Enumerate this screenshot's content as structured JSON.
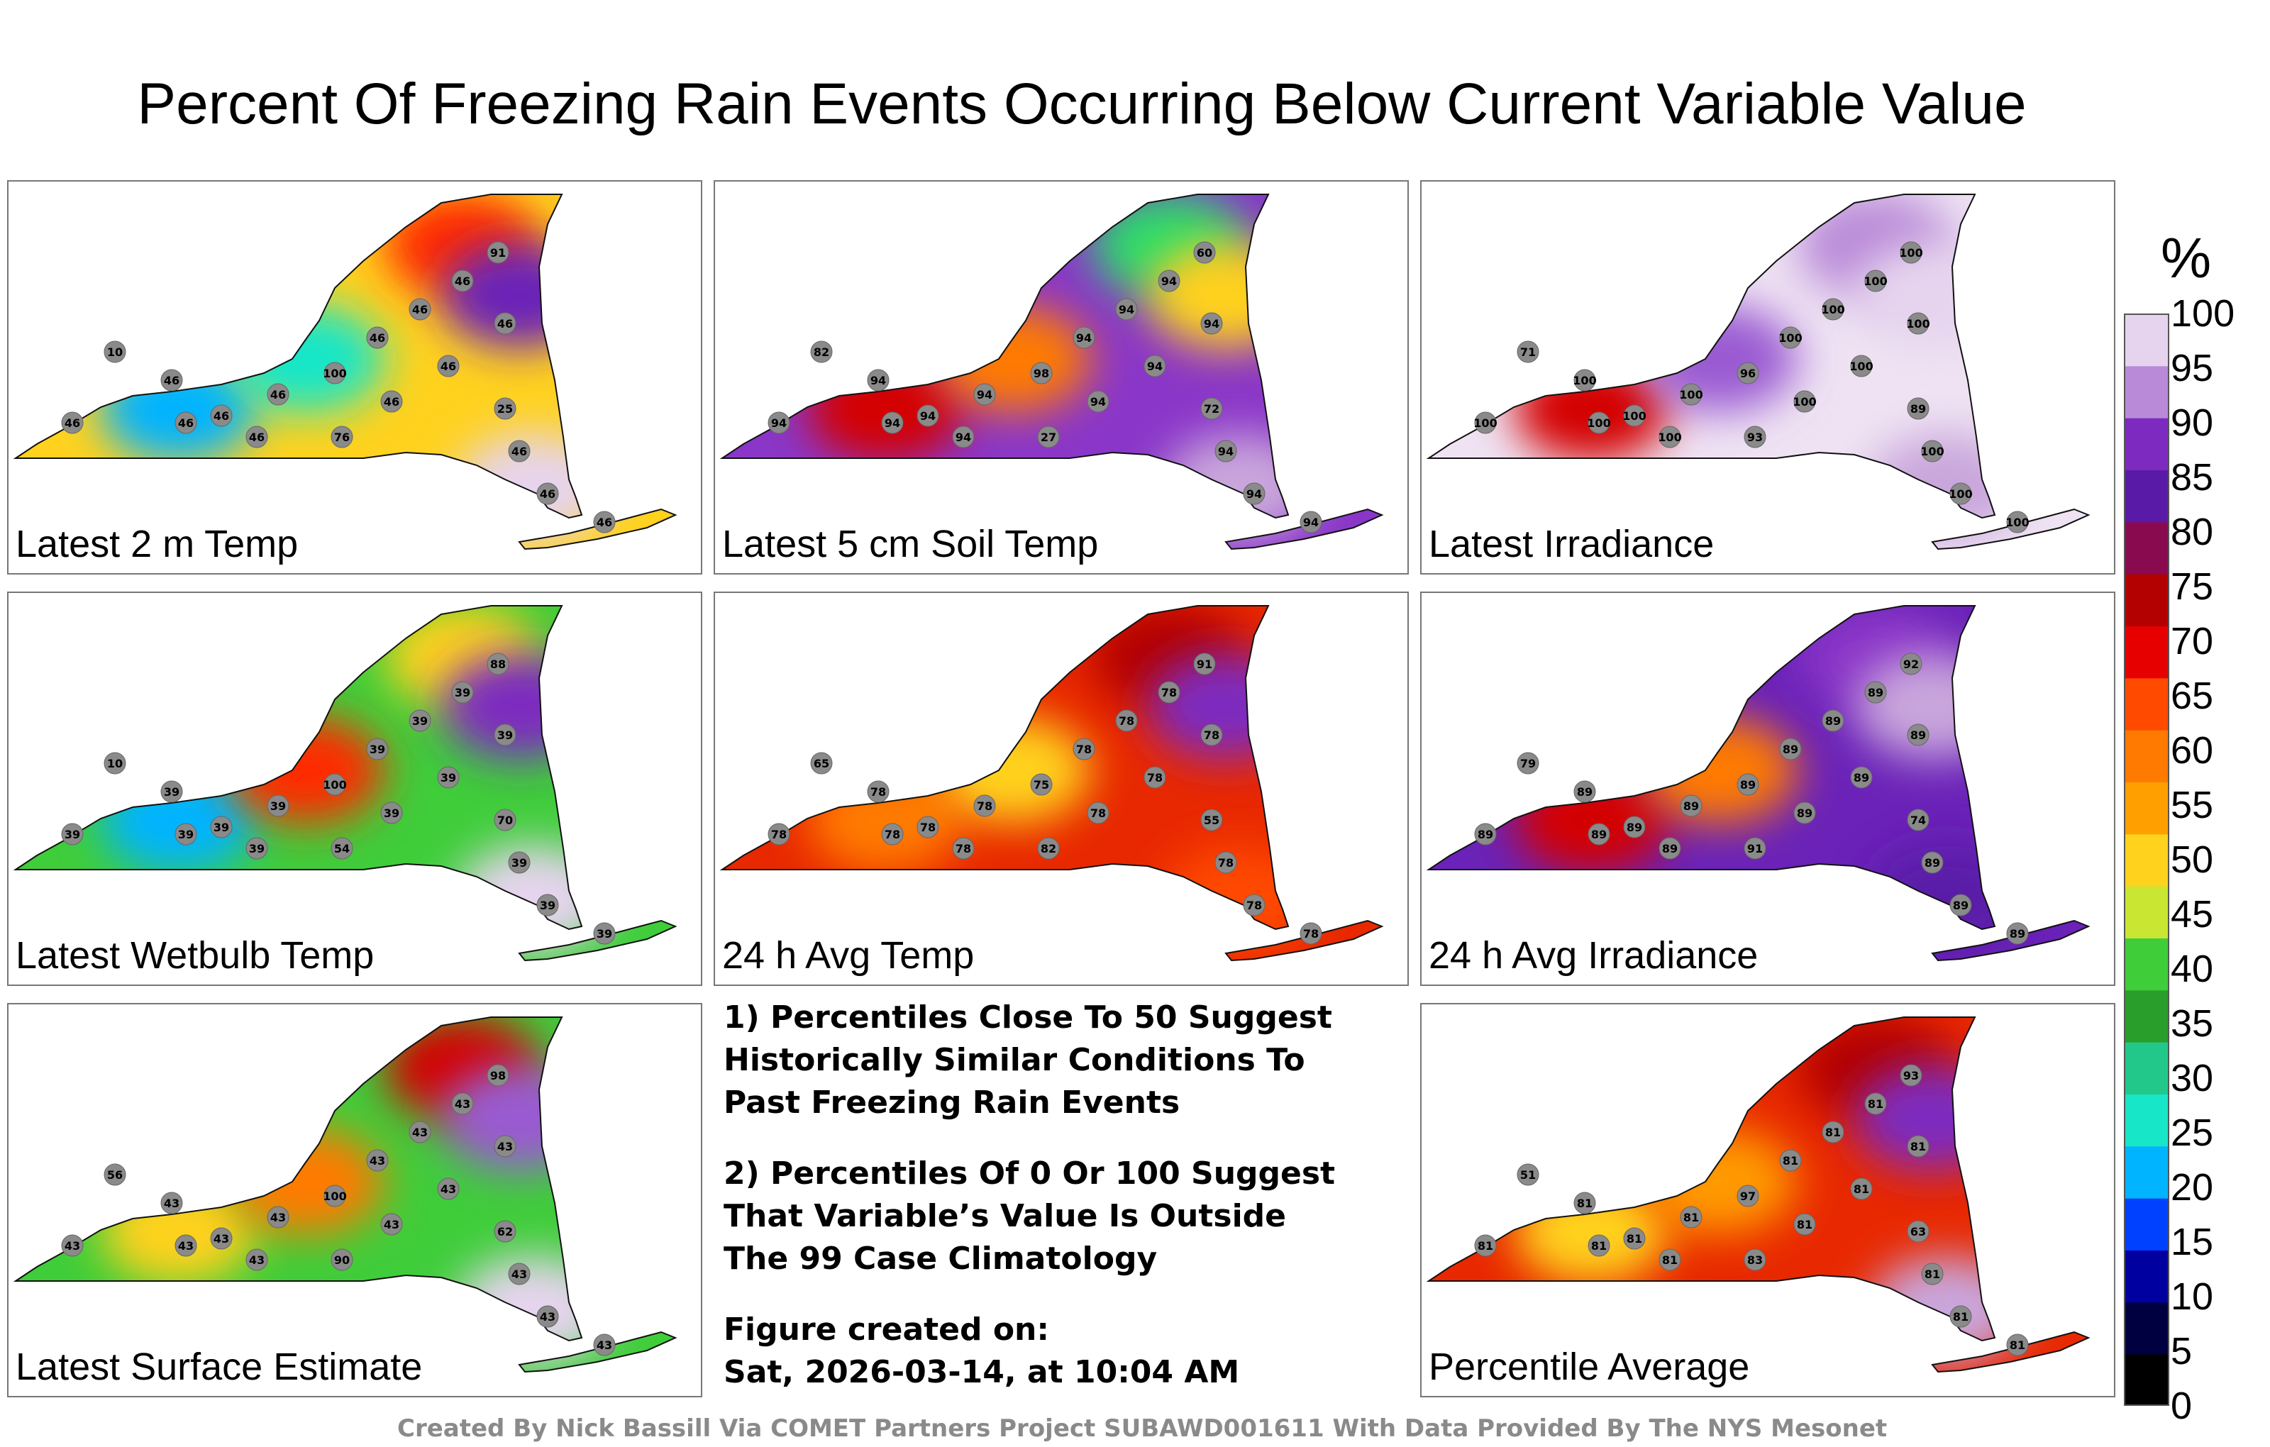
{
  "title": "Percent Of Freezing Rain Events Occurring Below Current Variable Value",
  "panels": [
    {
      "id": "t2m",
      "label": "Latest 2 m Temp",
      "fill": "#ffd21e",
      "station_value": "46",
      "blobs": [
        {
          "c": "#00b4ff",
          "v": "10"
        },
        {
          "c": "#18e6c8",
          "v": "25"
        },
        {
          "c": "#ff2a00",
          "v": "76"
        },
        {
          "c": "#6a22b8",
          "v": "91"
        },
        {
          "c": "#e6d4ee",
          "v": "100"
        }
      ]
    },
    {
      "id": "soil5",
      "label": "Latest 5 cm Soil Temp",
      "fill": "#8a36c8",
      "station_value": "94",
      "blobs": [
        {
          "c": "#d40000",
          "v": "82"
        },
        {
          "c": "#ff7a00",
          "v": "72"
        },
        {
          "c": "#2adc6a",
          "v": "27"
        },
        {
          "c": "#ffd21e",
          "v": "60"
        },
        {
          "c": "#c9a6dc",
          "v": "98"
        }
      ]
    },
    {
      "id": "irr",
      "label": "Latest Irradiance",
      "fill": "#efe3f3",
      "station_value": "100",
      "blobs": [
        {
          "c": "#d40000",
          "v": "71"
        },
        {
          "c": "#9a5ad2",
          "v": "89"
        },
        {
          "c": "#b98ad8",
          "v": "93"
        },
        {
          "c": "#e6d4ee",
          "v": "100"
        },
        {
          "c": "#c9a6dc",
          "v": "96"
        }
      ]
    },
    {
      "id": "wetbulb",
      "label": "Latest Wetbulb Temp",
      "fill": "#3fcd3a",
      "station_value": "39",
      "blobs": [
        {
          "c": "#00b4ff",
          "v": "10"
        },
        {
          "c": "#ff2a00",
          "v": "70"
        },
        {
          "c": "#ffd21e",
          "v": "54"
        },
        {
          "c": "#7d2ac0",
          "v": "88"
        },
        {
          "c": "#e6d4ee",
          "v": "100"
        }
      ]
    },
    {
      "id": "avgtemp",
      "label": "24 h Avg Temp",
      "fill": "#e82800",
      "station_value": "78",
      "blobs": [
        {
          "c": "#ff7a00",
          "v": "65"
        },
        {
          "c": "#ffd21e",
          "v": "55"
        },
        {
          "c": "#b30000",
          "v": "82"
        },
        {
          "c": "#7d2ac0",
          "v": "91"
        },
        {
          "c": "#ff4a00",
          "v": "75"
        }
      ]
    },
    {
      "id": "avgirr",
      "label": "24 h Avg Irradiance",
      "fill": "#6a22b8",
      "station_value": "89",
      "blobs": [
        {
          "c": "#d40000",
          "v": "79"
        },
        {
          "c": "#ff7a00",
          "v": "74"
        },
        {
          "c": "#8a36c8",
          "v": "91"
        },
        {
          "c": "#c9a6dc",
          "v": "92"
        },
        {
          "c": "#5a1aa8",
          "v": "89"
        }
      ]
    },
    {
      "id": "surf",
      "label": "Latest Surface Estimate",
      "fill": "#3fcd3a",
      "station_value": "43",
      "blobs": [
        {
          "c": "#ffd21e",
          "v": "56"
        },
        {
          "c": "#ff7a00",
          "v": "62"
        },
        {
          "c": "#d40000",
          "v": "90"
        },
        {
          "c": "#9a5ad2",
          "v": "98"
        },
        {
          "c": "#e6d4ee",
          "v": "100"
        }
      ]
    },
    {
      "id": "avg",
      "label": "Percentile Average",
      "fill": "#e82800",
      "station_value": "81",
      "blobs": [
        {
          "c": "#ffd21e",
          "v": "51"
        },
        {
          "c": "#ff9a00",
          "v": "63"
        },
        {
          "c": "#b30000",
          "v": "83"
        },
        {
          "c": "#7d2ac0",
          "v": "93"
        },
        {
          "c": "#c9a6dc",
          "v": "97"
        }
      ]
    }
  ],
  "notes": {
    "note1": [
      "1) Percentiles Close To 50 Suggest",
      "Historically Similar Conditions To",
      "Past Freezing Rain Events"
    ],
    "note2": [
      "2) Percentiles Of 0 Or 100 Suggest",
      "That Variable’s Value Is Outside",
      "The 99 Case Climatology"
    ],
    "created_label": "Figure created on:",
    "created_value": "Sat, 2026-03-14, at 10:04 AM"
  },
  "colorbar": {
    "unit": "%",
    "ticks": [
      "100",
      "95",
      "90",
      "85",
      "80",
      "75",
      "70",
      "65",
      "60",
      "55",
      "50",
      "45",
      "40",
      "35",
      "30",
      "25",
      "20",
      "15",
      "10",
      "5",
      "0"
    ],
    "colors": [
      "#000000",
      "#000040",
      "#0000a0",
      "#0040ff",
      "#00b4ff",
      "#18e6c8",
      "#22c88a",
      "#2a9e2a",
      "#3fcd3a",
      "#c8e632",
      "#ffd21e",
      "#ffa000",
      "#ff7a00",
      "#ff4a00",
      "#e60000",
      "#b30000",
      "#8a0a50",
      "#5a1aa8",
      "#7d2ac0",
      "#b98ad8",
      "#e6d4ee"
    ]
  },
  "credit": "Created By Nick Bassill Via COMET Partners Project SUBAWD001611 With Data Provided By The NYS Mesonet"
}
